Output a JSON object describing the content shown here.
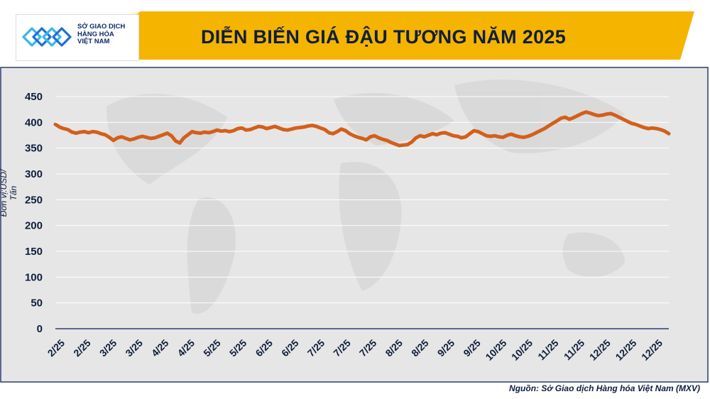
{
  "logo": {
    "lines": [
      "SỞ GIAO DỊCH",
      "HÀNG HÓA",
      "VIỆT NAM"
    ],
    "colors": [
      "#1e6fd9",
      "#38b6e8"
    ]
  },
  "source": "Nguồn: Sở Giao dịch Hàng hóa Việt Nam (MXV)",
  "colors": {
    "header_band": "#f5b400",
    "line": "#d35f1b",
    "plot_bg": "#dedede",
    "frame": "#2e3a70",
    "text": "#0f1e3c"
  },
  "chart_data": {
    "type": "line",
    "title": "DIỄN BIẾN GIÁ ĐẬU TƯƠNG NĂM 2025",
    "ylabel": "Đơn vị:USD/ Tấn",
    "xlabel": "",
    "ylim": [
      0,
      450
    ],
    "yticks": [
      0,
      50,
      100,
      150,
      200,
      250,
      300,
      350,
      400,
      450
    ],
    "grid": true,
    "legend": "none",
    "x_tick_labels": [
      "2/25",
      "2/25",
      "3/25",
      "3/25",
      "4/25",
      "4/25",
      "5/25",
      "5/25",
      "6/25",
      "6/25",
      "7/25",
      "7/25",
      "7/25",
      "8/25",
      "8/25",
      "9/25",
      "9/25",
      "10/25",
      "10/25",
      "11/25",
      "11/25",
      "12/25",
      "12/25",
      "12/25"
    ],
    "values": [
      396,
      391,
      388,
      386,
      381,
      379,
      381,
      382,
      380,
      382,
      381,
      378,
      376,
      371,
      365,
      370,
      372,
      369,
      366,
      368,
      371,
      373,
      371,
      369,
      370,
      373,
      376,
      379,
      374,
      364,
      360,
      370,
      376,
      382,
      380,
      379,
      381,
      380,
      382,
      385,
      383,
      384,
      382,
      384,
      388,
      389,
      385,
      386,
      389,
      392,
      391,
      388,
      390,
      392,
      389,
      386,
      385,
      387,
      389,
      390,
      391,
      393,
      394,
      392,
      389,
      386,
      380,
      378,
      382,
      387,
      384,
      378,
      374,
      371,
      369,
      366,
      372,
      374,
      370,
      367,
      365,
      361,
      358,
      355,
      356,
      357,
      362,
      370,
      374,
      372,
      375,
      378,
      376,
      379,
      380,
      377,
      374,
      373,
      370,
      372,
      378,
      384,
      382,
      378,
      374,
      373,
      374,
      372,
      371,
      375,
      377,
      374,
      372,
      371,
      373,
      376,
      380,
      384,
      388,
      393,
      398,
      403,
      408,
      410,
      406,
      409,
      413,
      417,
      420,
      418,
      415,
      413,
      414,
      416,
      417,
      414,
      410,
      406,
      402,
      398,
      396,
      393,
      390,
      388,
      389,
      388,
      386,
      383,
      378
    ]
  }
}
